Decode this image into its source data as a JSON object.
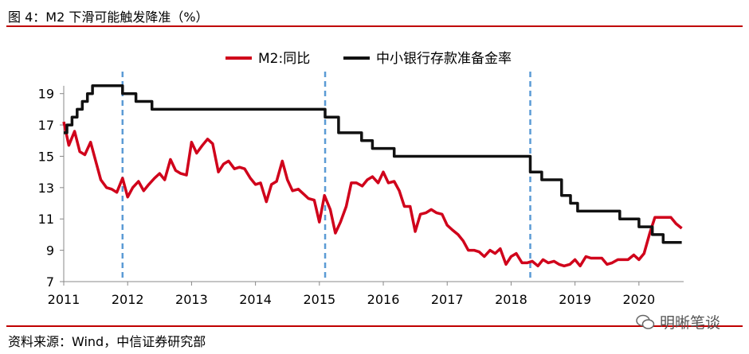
{
  "header": {
    "title": "图 4：M2 下滑可能触发降准（%）"
  },
  "footer": {
    "source": "资料来源：Wind，中信证券研究部",
    "watermark": "明晰笔谈"
  },
  "colors": {
    "m2": "#d0021b",
    "rrr": "#111111",
    "vline": "#5b9bd5",
    "rule": "#c00000"
  },
  "chart_data": {
    "type": "line",
    "title": "",
    "xlabel": "",
    "ylabel": "",
    "xlim": [
      2011,
      2020.7
    ],
    "ylim": [
      7,
      20
    ],
    "yticks": [
      7,
      9,
      11,
      13,
      15,
      17,
      19
    ],
    "xticks": [
      2011,
      2012,
      2013,
      2014,
      2015,
      2016,
      2017,
      2018,
      2019,
      2020
    ],
    "grid": false,
    "legend_position": "top",
    "vlines": [
      2011.92,
      2015.09,
      2018.3
    ],
    "series": [
      {
        "name": "M2:同比",
        "x": [
          2011.0,
          2011.08,
          2011.17,
          2011.25,
          2011.33,
          2011.42,
          2011.5,
          2011.58,
          2011.67,
          2011.75,
          2011.83,
          2011.92,
          2012.0,
          2012.08,
          2012.17,
          2012.25,
          2012.33,
          2012.42,
          2012.5,
          2012.58,
          2012.67,
          2012.75,
          2012.83,
          2012.92,
          2013.0,
          2013.08,
          2013.17,
          2013.25,
          2013.33,
          2013.42,
          2013.5,
          2013.58,
          2013.67,
          2013.75,
          2013.83,
          2013.92,
          2014.0,
          2014.08,
          2014.17,
          2014.25,
          2014.33,
          2014.42,
          2014.5,
          2014.58,
          2014.67,
          2014.75,
          2014.83,
          2014.92,
          2015.0,
          2015.08,
          2015.17,
          2015.25,
          2015.33,
          2015.42,
          2015.5,
          2015.58,
          2015.67,
          2015.75,
          2015.83,
          2015.92,
          2016.0,
          2016.08,
          2016.17,
          2016.25,
          2016.33,
          2016.42,
          2016.5,
          2016.58,
          2016.67,
          2016.75,
          2016.83,
          2016.92,
          2017.0,
          2017.08,
          2017.17,
          2017.25,
          2017.33,
          2017.42,
          2017.5,
          2017.58,
          2017.67,
          2017.75,
          2017.83,
          2017.92,
          2018.0,
          2018.08,
          2018.17,
          2018.25,
          2018.33,
          2018.42,
          2018.5,
          2018.58,
          2018.67,
          2018.75,
          2018.83,
          2018.92,
          2019.0,
          2019.08,
          2019.17,
          2019.25,
          2019.33,
          2019.42,
          2019.5,
          2019.58,
          2019.67,
          2019.75,
          2019.83,
          2019.92,
          2020.0,
          2020.08,
          2020.17,
          2020.25,
          2020.33,
          2020.42,
          2020.5,
          2020.58,
          2020.67
        ],
        "values": [
          17.2,
          15.7,
          16.6,
          15.3,
          15.1,
          15.9,
          14.7,
          13.5,
          13.0,
          12.9,
          12.7,
          13.6,
          12.4,
          13.0,
          13.4,
          12.8,
          13.2,
          13.6,
          13.9,
          13.5,
          14.8,
          14.1,
          13.9,
          13.8,
          15.9,
          15.2,
          15.7,
          16.1,
          15.8,
          14.0,
          14.5,
          14.7,
          14.2,
          14.3,
          14.2,
          13.6,
          13.2,
          13.3,
          12.1,
          13.2,
          13.4,
          14.7,
          13.5,
          12.8,
          12.9,
          12.6,
          12.3,
          12.2,
          10.8,
          12.5,
          11.6,
          10.1,
          10.8,
          11.8,
          13.3,
          13.3,
          13.1,
          13.5,
          13.7,
          13.3,
          14.0,
          13.3,
          13.4,
          12.8,
          11.8,
          11.8,
          10.2,
          11.3,
          11.4,
          11.6,
          11.4,
          11.3,
          10.6,
          10.3,
          10.0,
          9.6,
          9.0,
          9.0,
          8.9,
          8.6,
          9.0,
          8.8,
          9.1,
          8.1,
          8.6,
          8.8,
          8.2,
          8.2,
          8.3,
          8.0,
          8.4,
          8.2,
          8.3,
          8.1,
          8.0,
          8.1,
          8.4,
          8.0,
          8.6,
          8.5,
          8.5,
          8.5,
          8.1,
          8.2,
          8.4,
          8.4,
          8.4,
          8.7,
          8.4,
          8.8,
          10.1,
          11.1,
          11.1,
          11.1,
          11.1,
          10.7,
          10.4
        ]
      },
      {
        "name": "中小银行存款准备金率",
        "step": true,
        "x": [
          2011.0,
          2011.05,
          2011.13,
          2011.21,
          2011.29,
          2011.37,
          2011.45,
          2011.92,
          2012.13,
          2012.38,
          2015.09,
          2015.3,
          2015.66,
          2015.83,
          2016.17,
          2018.3,
          2018.33,
          2018.48,
          2018.79,
          2018.93,
          2019.04,
          2019.7,
          2019.88,
          2020.0,
          2020.21,
          2020.38,
          2020.67
        ],
        "values": [
          16.5,
          17.0,
          17.5,
          18.0,
          18.5,
          19.0,
          19.5,
          19.0,
          18.5,
          18.0,
          17.5,
          16.5,
          16.0,
          15.5,
          15.0,
          14.0,
          14.0,
          13.5,
          12.5,
          12.0,
          11.5,
          11.0,
          11.0,
          10.5,
          10.0,
          9.5,
          9.5
        ]
      }
    ]
  }
}
